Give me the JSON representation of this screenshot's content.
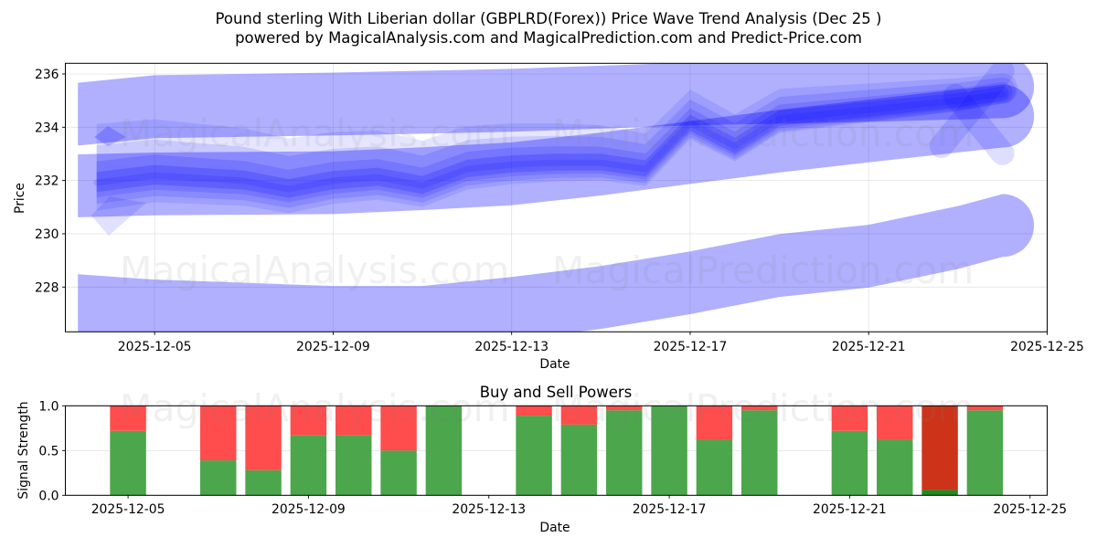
{
  "title": {
    "line1": "Pound sterling With Liberian dollar (GBPLRD(Forex)) Price Wave Trend Analysis (Dec 25 )",
    "line2": "powered by MagicalAnalysis.com and MagicalPrediction.com and Predict-Price.com"
  },
  "watermarks": {
    "analysis": "MagicalAnalysis.com",
    "prediction": "MagicalPrediction.com"
  },
  "chart_data": [
    {
      "type": "area",
      "title": "",
      "xlabel": "Date",
      "ylabel": "Price",
      "x_unit": "day of December 2025",
      "xlim": [
        3,
        25
      ],
      "ylim": [
        226.32,
        236.4
      ],
      "grid": true,
      "xticks": [
        {
          "day": 5,
          "label": "2025-12-05"
        },
        {
          "day": 9,
          "label": "2025-12-09"
        },
        {
          "day": 13,
          "label": "2025-12-13"
        },
        {
          "day": 17,
          "label": "2025-12-17"
        },
        {
          "day": 21,
          "label": "2025-12-21"
        },
        {
          "day": 25,
          "label": "2025-12-25"
        }
      ],
      "yticks": [
        {
          "value": 228,
          "label": "228"
        },
        {
          "value": 230,
          "label": "230"
        },
        {
          "value": 232,
          "label": "232"
        },
        {
          "value": 234,
          "label": "234"
        },
        {
          "value": 236,
          "label": "236"
        }
      ],
      "colors": {
        "band": "#0000ff",
        "wave": "#0000ff"
      },
      "bands": [
        {
          "name": "upper-trend-band",
          "half_width": 1.18,
          "opacity": 0.31,
          "points": [
            [
              3.28,
              234.49
            ],
            [
              5,
              234.77
            ],
            [
              9,
              234.87
            ],
            [
              13,
              235.01
            ],
            [
              17,
              235.25
            ],
            [
              21,
              235.38
            ],
            [
              24,
              235.52
            ]
          ]
        },
        {
          "name": "middle-trend-band",
          "half_width": 1.18,
          "opacity": 0.31,
          "points": [
            [
              3.28,
              231.8
            ],
            [
              5,
              231.87
            ],
            [
              9,
              231.92
            ],
            [
              11,
              232.07
            ],
            [
              13,
              232.25
            ],
            [
              15,
              232.62
            ],
            [
              17,
              233.05
            ],
            [
              19,
              233.48
            ],
            [
              21,
              233.86
            ],
            [
              24,
              234.42
            ]
          ]
        },
        {
          "name": "lower-trend-band",
          "half_width": 1.18,
          "opacity": 0.31,
          "points": [
            [
              3.28,
              227.3
            ],
            [
              5,
              227.1
            ],
            [
              9,
              226.86
            ],
            [
              11,
              226.86
            ],
            [
              13,
              227.2
            ],
            [
              15,
              227.61
            ],
            [
              17,
              228.16
            ],
            [
              19,
              228.81
            ],
            [
              21,
              229.16
            ],
            [
              23,
              229.86
            ],
            [
              24,
              230.31
            ]
          ]
        }
      ],
      "price_wave": {
        "days": [
          3.7,
          5,
          6,
          7,
          8,
          9,
          10,
          11,
          12,
          13,
          14,
          15,
          16,
          17,
          18,
          19,
          20,
          21,
          22,
          23,
          24
        ],
        "values": [
          231.92,
          232.19,
          232.09,
          231.99,
          231.68,
          231.99,
          232.12,
          231.81,
          232.43,
          232.6,
          232.67,
          232.67,
          232.43,
          234.15,
          233.29,
          234.32,
          234.49,
          234.66,
          234.83,
          235.0,
          235.25
        ]
      },
      "wave_layers": [
        {
          "up": 2.2,
          "down": 1.05,
          "taper": 0.35,
          "opacity": 0.1
        },
        {
          "up": 1.4,
          "down": 0.8,
          "taper": 0.45,
          "opacity": 0.12
        },
        {
          "up": 0.8,
          "down": 0.55,
          "taper": 0.55,
          "opacity": 0.14
        },
        {
          "up": 0.4,
          "down": 0.35,
          "taper": 0.7,
          "opacity": 0.18
        }
      ],
      "extra_shapes": [
        {
          "name": "left-lower-wave-tip",
          "opacity": 0.12,
          "points": [
            [
              3.58,
              230.68
            ],
            [
              3.97,
              229.93
            ],
            [
              4.81,
              231.16
            ],
            [
              3.99,
              231.4
            ]
          ]
        },
        {
          "name": "left-upper-wave-tip",
          "opacity": 0.2,
          "points": [
            [
              3.65,
              233.63
            ],
            [
              3.95,
              234.04
            ],
            [
              4.36,
              233.63
            ],
            [
              3.95,
              233.29
            ]
          ]
        }
      ],
      "extra_strokes": [
        {
          "name": "right-diagonal-wave-1",
          "opacity": 0.13,
          "width": 0.89,
          "from": [
            24.0,
            236.1
          ],
          "to": [
            22.63,
            233.29
          ]
        },
        {
          "name": "right-diagonal-wave-2",
          "opacity": 0.13,
          "width": 0.89,
          "from": [
            22.94,
            235.18
          ],
          "to": [
            24.0,
            233.02
          ]
        }
      ]
    },
    {
      "type": "bar",
      "title": "Buy and Sell Powers",
      "xlabel": "Date",
      "ylabel": "Signal Strength",
      "x_unit": "day of December 2025",
      "xlim": [
        3.61,
        25.38
      ],
      "ylim": [
        0,
        1
      ],
      "grid": true,
      "bar_width": 0.8,
      "xticks": [
        {
          "day": 5,
          "label": "2025-12-05"
        },
        {
          "day": 9,
          "label": "2025-12-09"
        },
        {
          "day": 13,
          "label": "2025-12-13"
        },
        {
          "day": 17,
          "label": "2025-12-17"
        },
        {
          "day": 21,
          "label": "2025-12-21"
        },
        {
          "day": 25,
          "label": "2025-12-25"
        }
      ],
      "yticks": [
        {
          "value": 0,
          "label": "0.0"
        },
        {
          "value": 0.5,
          "label": "0.5"
        },
        {
          "value": 1,
          "label": "1.0"
        }
      ],
      "categories": [
        "2025-12-05",
        "2025-12-07",
        "2025-12-08",
        "2025-12-09",
        "2025-12-10",
        "2025-12-11",
        "2025-12-12",
        "2025-12-14",
        "2025-12-15",
        "2025-12-16",
        "2025-12-17",
        "2025-12-18",
        "2025-12-19",
        "2025-12-21",
        "2025-12-22",
        "2025-12-23",
        "2025-12-24"
      ],
      "days": [
        5,
        7,
        8,
        9,
        10,
        11,
        12,
        14,
        15,
        16,
        17,
        18,
        19,
        21,
        22,
        23,
        24
      ],
      "series": [
        {
          "name": "Buy",
          "values": [
            0.72,
            0.39,
            0.28,
            0.67,
            0.67,
            0.5,
            1.0,
            0.89,
            0.79,
            0.95,
            1.0,
            0.62,
            0.95,
            0.72,
            0.62,
            0.06,
            0.95
          ]
        },
        {
          "name": "Sell",
          "values": [
            0.28,
            0.61,
            0.72,
            0.33,
            0.33,
            0.5,
            0.0,
            0.11,
            0.21,
            0.05,
            0.0,
            0.38,
            0.05,
            0.28,
            0.38,
            0.94,
            0.05
          ]
        }
      ],
      "signals": [
        "normal",
        "normal",
        "normal",
        "normal",
        "normal",
        "normal",
        "normal",
        "normal",
        "normal",
        "normal",
        "normal",
        "normal",
        "normal",
        "normal",
        "normal",
        "strong_sell",
        "normal"
      ],
      "colors": {
        "buy": "#4ca64c",
        "sell": "#ff4c4c",
        "strong_buy": "#1e8c1e",
        "strong_sell": "#cc3319"
      }
    }
  ]
}
